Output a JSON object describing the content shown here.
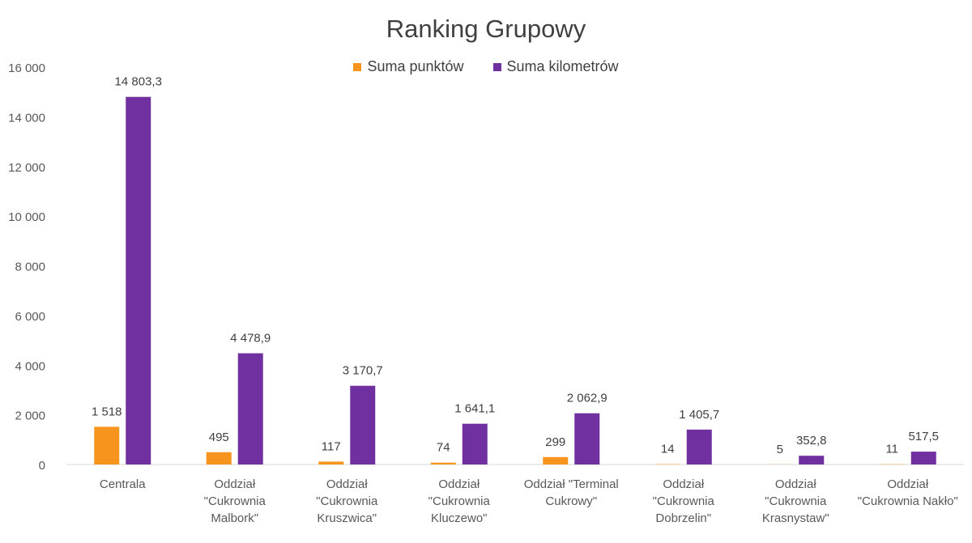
{
  "chart_data": {
    "type": "bar",
    "title": "Ranking Grupowy",
    "categories": [
      [
        "Centrala"
      ],
      [
        "Oddział",
        "\"Cukrownia",
        "Malbork\""
      ],
      [
        "Oddział",
        "\"Cukrownia",
        "Kruszwica\""
      ],
      [
        "Oddział",
        "\"Cukrownia",
        "Kluczewo\""
      ],
      [
        "Oddział \"Terminal",
        "Cukrowy\""
      ],
      [
        "Oddział",
        "\"Cukrownia",
        "Dobrzelin\""
      ],
      [
        "Oddział",
        "\"Cukrownia",
        "Krasnystaw\""
      ],
      [
        "Oddział",
        "\"Cukrownia Nakło\""
      ]
    ],
    "series": [
      {
        "name": "Suma punktów",
        "color": "#F7941D",
        "values": [
          1518,
          495,
          117,
          74,
          299,
          14,
          5,
          11
        ],
        "labels": [
          "1 518",
          "495",
          "117",
          "74",
          "299",
          "14",
          "5",
          "11"
        ]
      },
      {
        "name": "Suma kilometrów",
        "color": "#7030A0",
        "values": [
          14803.3,
          4478.9,
          3170.7,
          1641.1,
          2062.9,
          1405.7,
          352.8,
          517.5
        ],
        "labels": [
          "14 803,3",
          "4 478,9",
          "3 170,7",
          "1 641,1",
          "2 062,9",
          "1 405,7",
          "352,8",
          "517,5"
        ]
      }
    ],
    "ylim": [
      0,
      16000
    ],
    "yticks": [
      "0",
      "2 000",
      "4 000",
      "6 000",
      "8 000",
      "10 000",
      "12 000",
      "14 000",
      "16 000"
    ],
    "ytick_values": [
      0,
      2000,
      4000,
      6000,
      8000,
      10000,
      12000,
      14000,
      16000
    ],
    "grid": false,
    "legend_position": "top-center"
  }
}
